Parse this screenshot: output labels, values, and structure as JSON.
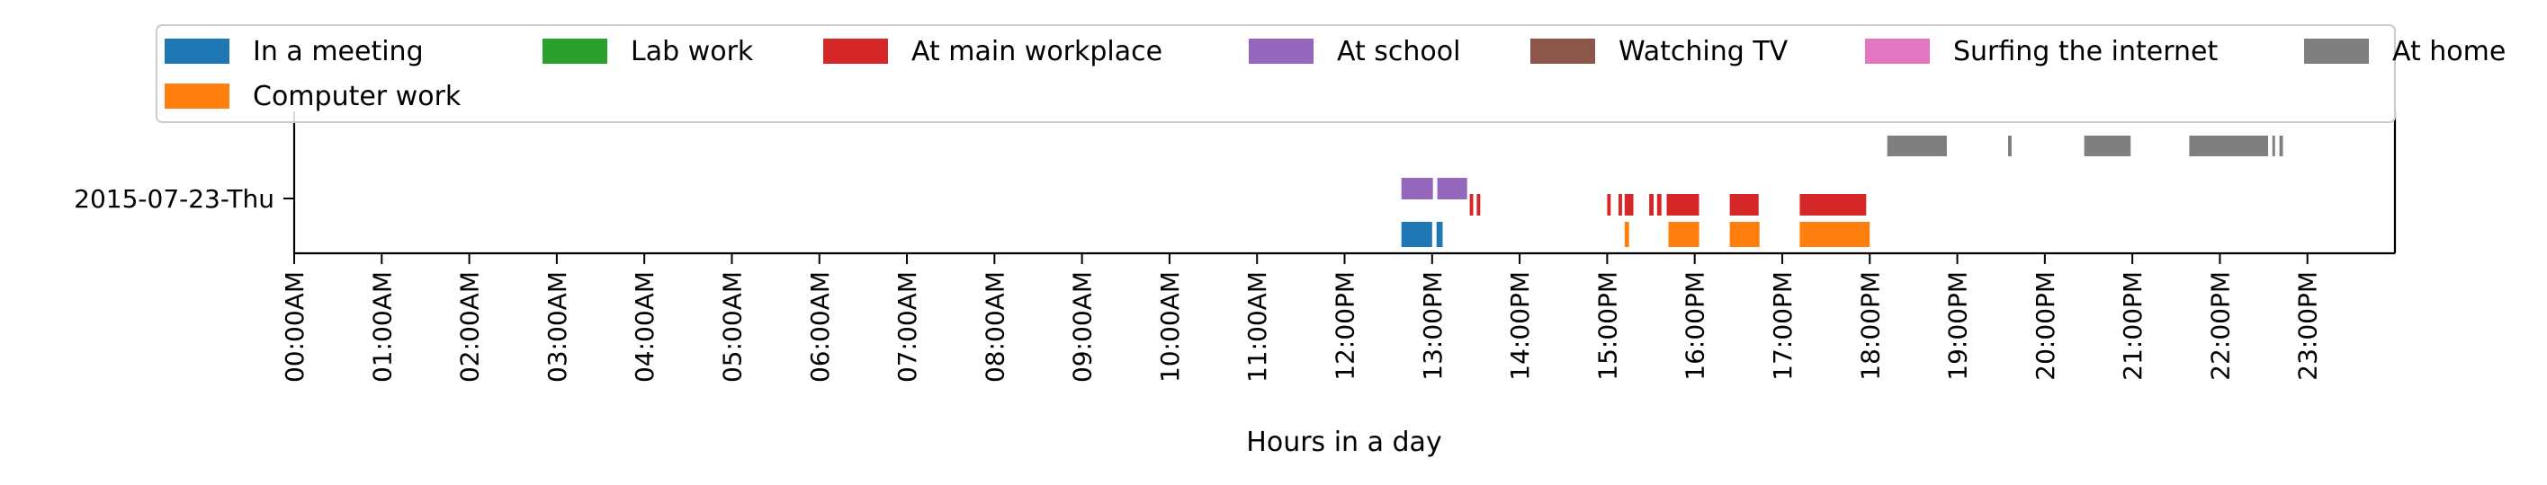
{
  "chart_data": {
    "type": "timeline",
    "xlabel": "Hours in a day",
    "ylabel": "",
    "xlim": [
      0,
      24
    ],
    "row_labels": [
      "2015-07-23-Thu"
    ],
    "x_tick_labels": [
      "00:00AM",
      "01:00AM",
      "02:00AM",
      "03:00AM",
      "04:00AM",
      "05:00AM",
      "06:00AM",
      "07:00AM",
      "08:00AM",
      "09:00AM",
      "10:00AM",
      "11:00AM",
      "12:00PM",
      "13:00PM",
      "14:00PM",
      "15:00PM",
      "16:00PM",
      "17:00PM",
      "18:00PM",
      "19:00PM",
      "20:00PM",
      "21:00PM",
      "22:00PM",
      "23:00PM"
    ],
    "legend": {
      "location": "upper-center",
      "columns": 7,
      "entries": [
        "In a meeting",
        "Lab work",
        "At main workplace",
        "At school",
        "Watching TV",
        "Surfing the internet",
        "At home",
        "Computer work"
      ]
    },
    "series": [
      {
        "name": "In a meeting",
        "color": "#1f77b4",
        "row": 0,
        "track": "bottom",
        "intervals": [
          [
            12.65,
            13.0
          ],
          [
            13.05,
            13.12
          ]
        ]
      },
      {
        "name": "Lab work",
        "color": "#2ca02c",
        "row": 0,
        "track": "none",
        "intervals": []
      },
      {
        "name": "At main workplace",
        "color": "#d62728",
        "row": 0,
        "track": "mid",
        "intervals": [
          [
            13.43,
            13.47
          ],
          [
            13.51,
            13.55
          ],
          [
            15.0,
            15.04
          ],
          [
            15.13,
            15.17
          ],
          [
            15.2,
            15.3
          ],
          [
            15.48,
            15.53
          ],
          [
            15.57,
            15.62
          ],
          [
            15.68,
            16.05
          ],
          [
            16.4,
            16.73
          ],
          [
            17.2,
            17.96
          ]
        ]
      },
      {
        "name": "At school",
        "color": "#9467bd",
        "row": 0,
        "track": "mid-high",
        "intervals": [
          [
            12.65,
            13.01
          ],
          [
            13.06,
            13.4
          ]
        ]
      },
      {
        "name": "Watching TV",
        "color": "#8c564b",
        "row": 0,
        "track": "none",
        "intervals": []
      },
      {
        "name": "Surfing the internet",
        "color": "#e377c2",
        "row": 0,
        "track": "none",
        "intervals": []
      },
      {
        "name": "At home",
        "color": "#7f7f7f",
        "row": 0,
        "track": "top",
        "intervals": [
          [
            18.2,
            18.88
          ],
          [
            19.58,
            19.62
          ],
          [
            20.45,
            20.98
          ],
          [
            21.65,
            22.55
          ],
          [
            22.6,
            22.63
          ],
          [
            22.68,
            22.72
          ]
        ]
      },
      {
        "name": "Computer work",
        "color": "#ff7f0e",
        "row": 0,
        "track": "bottom",
        "intervals": [
          [
            15.2,
            15.25
          ],
          [
            15.7,
            16.05
          ],
          [
            16.4,
            16.74
          ],
          [
            17.2,
            18.0
          ]
        ]
      }
    ]
  }
}
